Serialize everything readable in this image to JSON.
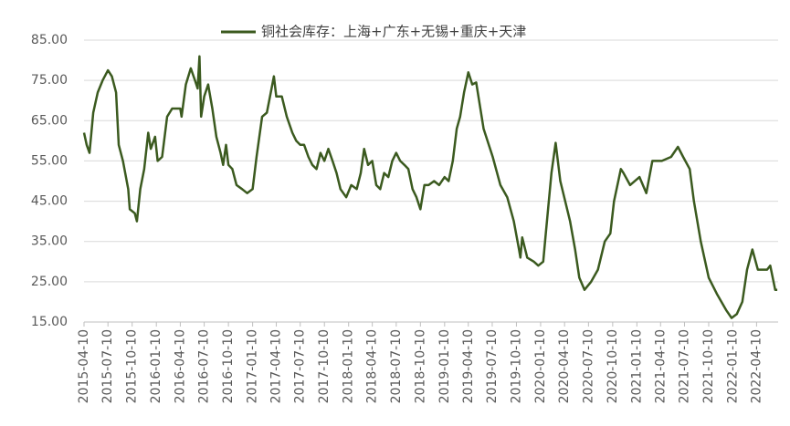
{
  "chart_data": {
    "type": "line",
    "x": [
      "2015-04-10",
      "2015-04-20",
      "2015-05-01",
      "2015-05-15",
      "2015-06-01",
      "2015-06-20",
      "2015-07-10",
      "2015-07-25",
      "2015-08-10",
      "2015-08-20",
      "2015-09-05",
      "2015-09-25",
      "2015-10-01",
      "2015-10-20",
      "2015-10-28",
      "2015-11-10",
      "2015-11-25",
      "2015-12-10",
      "2015-12-20",
      "2016-01-05",
      "2016-01-15",
      "2016-02-01",
      "2016-02-20",
      "2016-03-10",
      "2016-03-25",
      "2016-04-10",
      "2016-04-15",
      "2016-05-01",
      "2016-05-20",
      "2016-06-05",
      "2016-06-15",
      "2016-06-22",
      "2016-06-28",
      "2016-07-10",
      "2016-07-25",
      "2016-08-10",
      "2016-08-25",
      "2016-09-10",
      "2016-09-20",
      "2016-10-01",
      "2016-10-10",
      "2016-10-25",
      "2016-11-10",
      "2016-12-01",
      "2016-12-20",
      "2017-01-10",
      "2017-01-25",
      "2017-02-15",
      "2017-03-05",
      "2017-03-20",
      "2017-04-01",
      "2017-04-10",
      "2017-05-01",
      "2017-05-20",
      "2017-06-10",
      "2017-06-25",
      "2017-07-10",
      "2017-07-25",
      "2017-08-10",
      "2017-08-25",
      "2017-09-10",
      "2017-09-25",
      "2017-10-10",
      "2017-10-25",
      "2017-11-10",
      "2017-11-25",
      "2017-12-10",
      "2018-01-01",
      "2018-01-20",
      "2018-02-10",
      "2018-02-25",
      "2018-03-10",
      "2018-03-25",
      "2018-04-10",
      "2018-04-25",
      "2018-05-10",
      "2018-05-25",
      "2018-06-10",
      "2018-06-25",
      "2018-07-10",
      "2018-07-25",
      "2018-08-10",
      "2018-08-25",
      "2018-09-10",
      "2018-09-25",
      "2018-10-10",
      "2018-10-25",
      "2018-11-10",
      "2018-12-01",
      "2018-12-20",
      "2019-01-10",
      "2019-01-25",
      "2019-02-10",
      "2019-02-25",
      "2019-03-10",
      "2019-03-25",
      "2019-04-10",
      "2019-04-25",
      "2019-05-10",
      "2019-06-07",
      "2019-07-12",
      "2019-08-10",
      "2019-09-05",
      "2019-09-30",
      "2019-10-20",
      "2019-10-25",
      "2019-11-01",
      "2019-11-20",
      "2019-12-15",
      "2020-01-01",
      "2020-01-20",
      "2020-01-27",
      "2020-02-20",
      "2020-03-07",
      "2020-03-25",
      "2020-05-01",
      "2020-05-20",
      "2020-06-05",
      "2020-06-25",
      "2020-07-20",
      "2020-08-15",
      "2020-09-10",
      "2020-10-01",
      "2020-10-15",
      "2020-11-10",
      "2020-11-20",
      "2020-12-15",
      "2021-01-20",
      "2021-02-15",
      "2021-03-10",
      "2021-04-15",
      "2021-05-20",
      "2021-06-15",
      "2021-07-05",
      "2021-07-30",
      "2021-08-15",
      "2021-09-10",
      "2021-10-10",
      "2021-11-10",
      "2021-12-15",
      "2022-01-05",
      "2022-01-25",
      "2022-02-15",
      "2022-03-05",
      "2022-03-25",
      "2022-04-15",
      "2022-05-20",
      "2022-06-01",
      "2022-06-20",
      "2022-06-28"
    ],
    "series": [
      {
        "name": "铜社会库存：上海+广东+无锡+重庆+天津",
        "color": "#3b5a1f",
        "values": [
          62,
          59,
          57,
          67,
          72,
          75,
          77.5,
          76,
          72,
          59,
          55,
          48,
          43,
          42,
          40,
          48,
          53,
          62,
          58,
          61,
          55,
          56,
          66,
          68,
          68,
          68,
          66,
          74,
          78,
          75,
          73,
          81,
          66,
          71,
          74,
          68,
          61,
          57,
          54,
          59,
          54,
          53,
          49,
          48,
          47,
          48,
          56,
          66,
          67,
          72,
          76,
          71,
          71,
          66,
          62,
          60,
          59,
          59,
          56,
          54,
          53,
          57,
          55,
          58,
          55,
          52,
          48,
          46,
          49,
          48,
          52,
          58,
          54,
          55,
          49,
          48,
          52,
          51,
          55,
          57,
          55,
          54,
          53,
          48,
          46,
          43,
          49,
          49,
          50,
          49,
          51,
          50,
          55,
          63,
          66,
          72,
          77,
          74,
          74.5,
          63,
          56,
          49,
          46,
          40,
          33,
          31,
          36,
          31,
          30,
          29,
          30,
          35,
          52,
          59.5,
          50,
          40,
          33,
          26,
          23,
          25,
          28,
          35,
          37,
          45,
          53,
          52,
          49,
          51,
          47,
          55,
          55,
          56,
          58.5,
          56,
          53,
          45,
          35,
          26,
          22,
          18,
          16,
          17,
          20,
          28,
          33,
          28,
          28,
          29,
          23,
          23
        ]
      }
    ],
    "xlim": [
      "2015-04-10",
      "2022-07-01"
    ],
    "xticks": [
      "2015-04-10",
      "2015-07-10",
      "2015-10-10",
      "2016-01-10",
      "2016-04-10",
      "2016-07-10",
      "2016-10-10",
      "2017-01-10",
      "2017-04-10",
      "2017-07-10",
      "2017-10-10",
      "2018-01-10",
      "2018-04-10",
      "2018-07-10",
      "2018-10-10",
      "2019-01-10",
      "2019-04-10",
      "2019-07-10",
      "2019-10-10",
      "2020-01-10",
      "2020-04-10",
      "2020-07-10",
      "2020-10-10",
      "2021-01-10",
      "2021-04-10",
      "2021-07-10",
      "2021-10-10",
      "2022-01-10",
      "2022-04-10"
    ],
    "ylim": [
      15,
      85
    ],
    "yticks": [
      {
        "value": 15,
        "label": "15.00"
      },
      {
        "value": 25,
        "label": "25.00"
      },
      {
        "value": 35,
        "label": "35.00"
      },
      {
        "value": 45,
        "label": "45.00"
      },
      {
        "value": 55,
        "label": "55.00"
      },
      {
        "value": 65,
        "label": "65.00"
      },
      {
        "value": 75,
        "label": "75.00"
      },
      {
        "value": 85,
        "label": "85.00"
      }
    ],
    "grid": true,
    "legend": "top"
  }
}
